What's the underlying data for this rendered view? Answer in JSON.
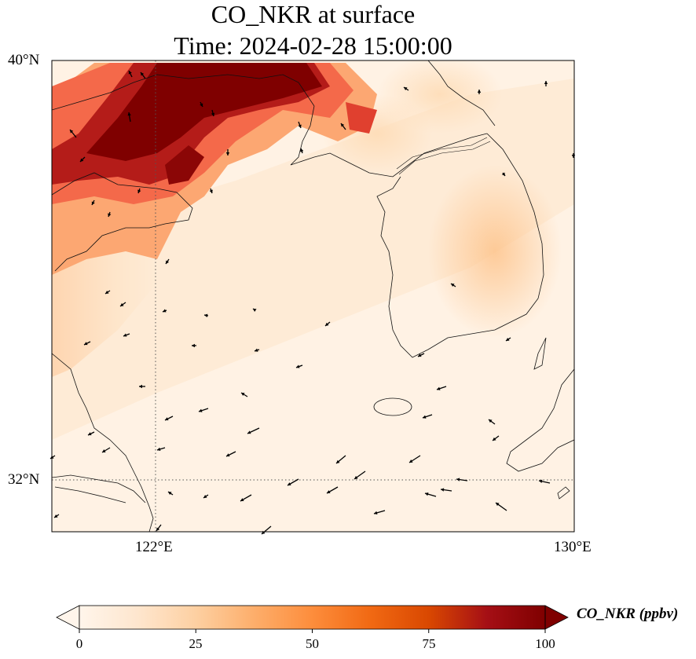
{
  "title": {
    "line1": "CO_NKR at surface",
    "line2": "Time: 2024-02-28 15:00:00"
  },
  "map": {
    "lon_range": [
      118.8,
      130
    ],
    "lat_range": [
      31.0,
      40
    ],
    "lat_ticks": [
      {
        "value": 40,
        "label": "40°N"
      },
      {
        "value": 32,
        "label": "32°N"
      }
    ],
    "lon_ticks": [
      {
        "value": 122,
        "label": "122°E"
      },
      {
        "value": 130,
        "label": "130°E"
      }
    ],
    "gridlines": {
      "lon": [
        122
      ],
      "lat": [
        32
      ]
    }
  },
  "colorbar": {
    "label": "CO_NKR (ppbv)",
    "min": 0,
    "max": 100,
    "ticks": [
      {
        "value": 0,
        "label": "0"
      },
      {
        "value": 25,
        "label": "25"
      },
      {
        "value": 50,
        "label": "50"
      },
      {
        "value": 75,
        "label": "75"
      },
      {
        "value": 100,
        "label": "100"
      }
    ],
    "colors": [
      "#fff5eb",
      "#fee6ce",
      "#fdd0a2",
      "#fdae6b",
      "#fd8d3c",
      "#f16913",
      "#d94801",
      "#a50f15",
      "#7f0000"
    ],
    "extend": "both"
  }
}
